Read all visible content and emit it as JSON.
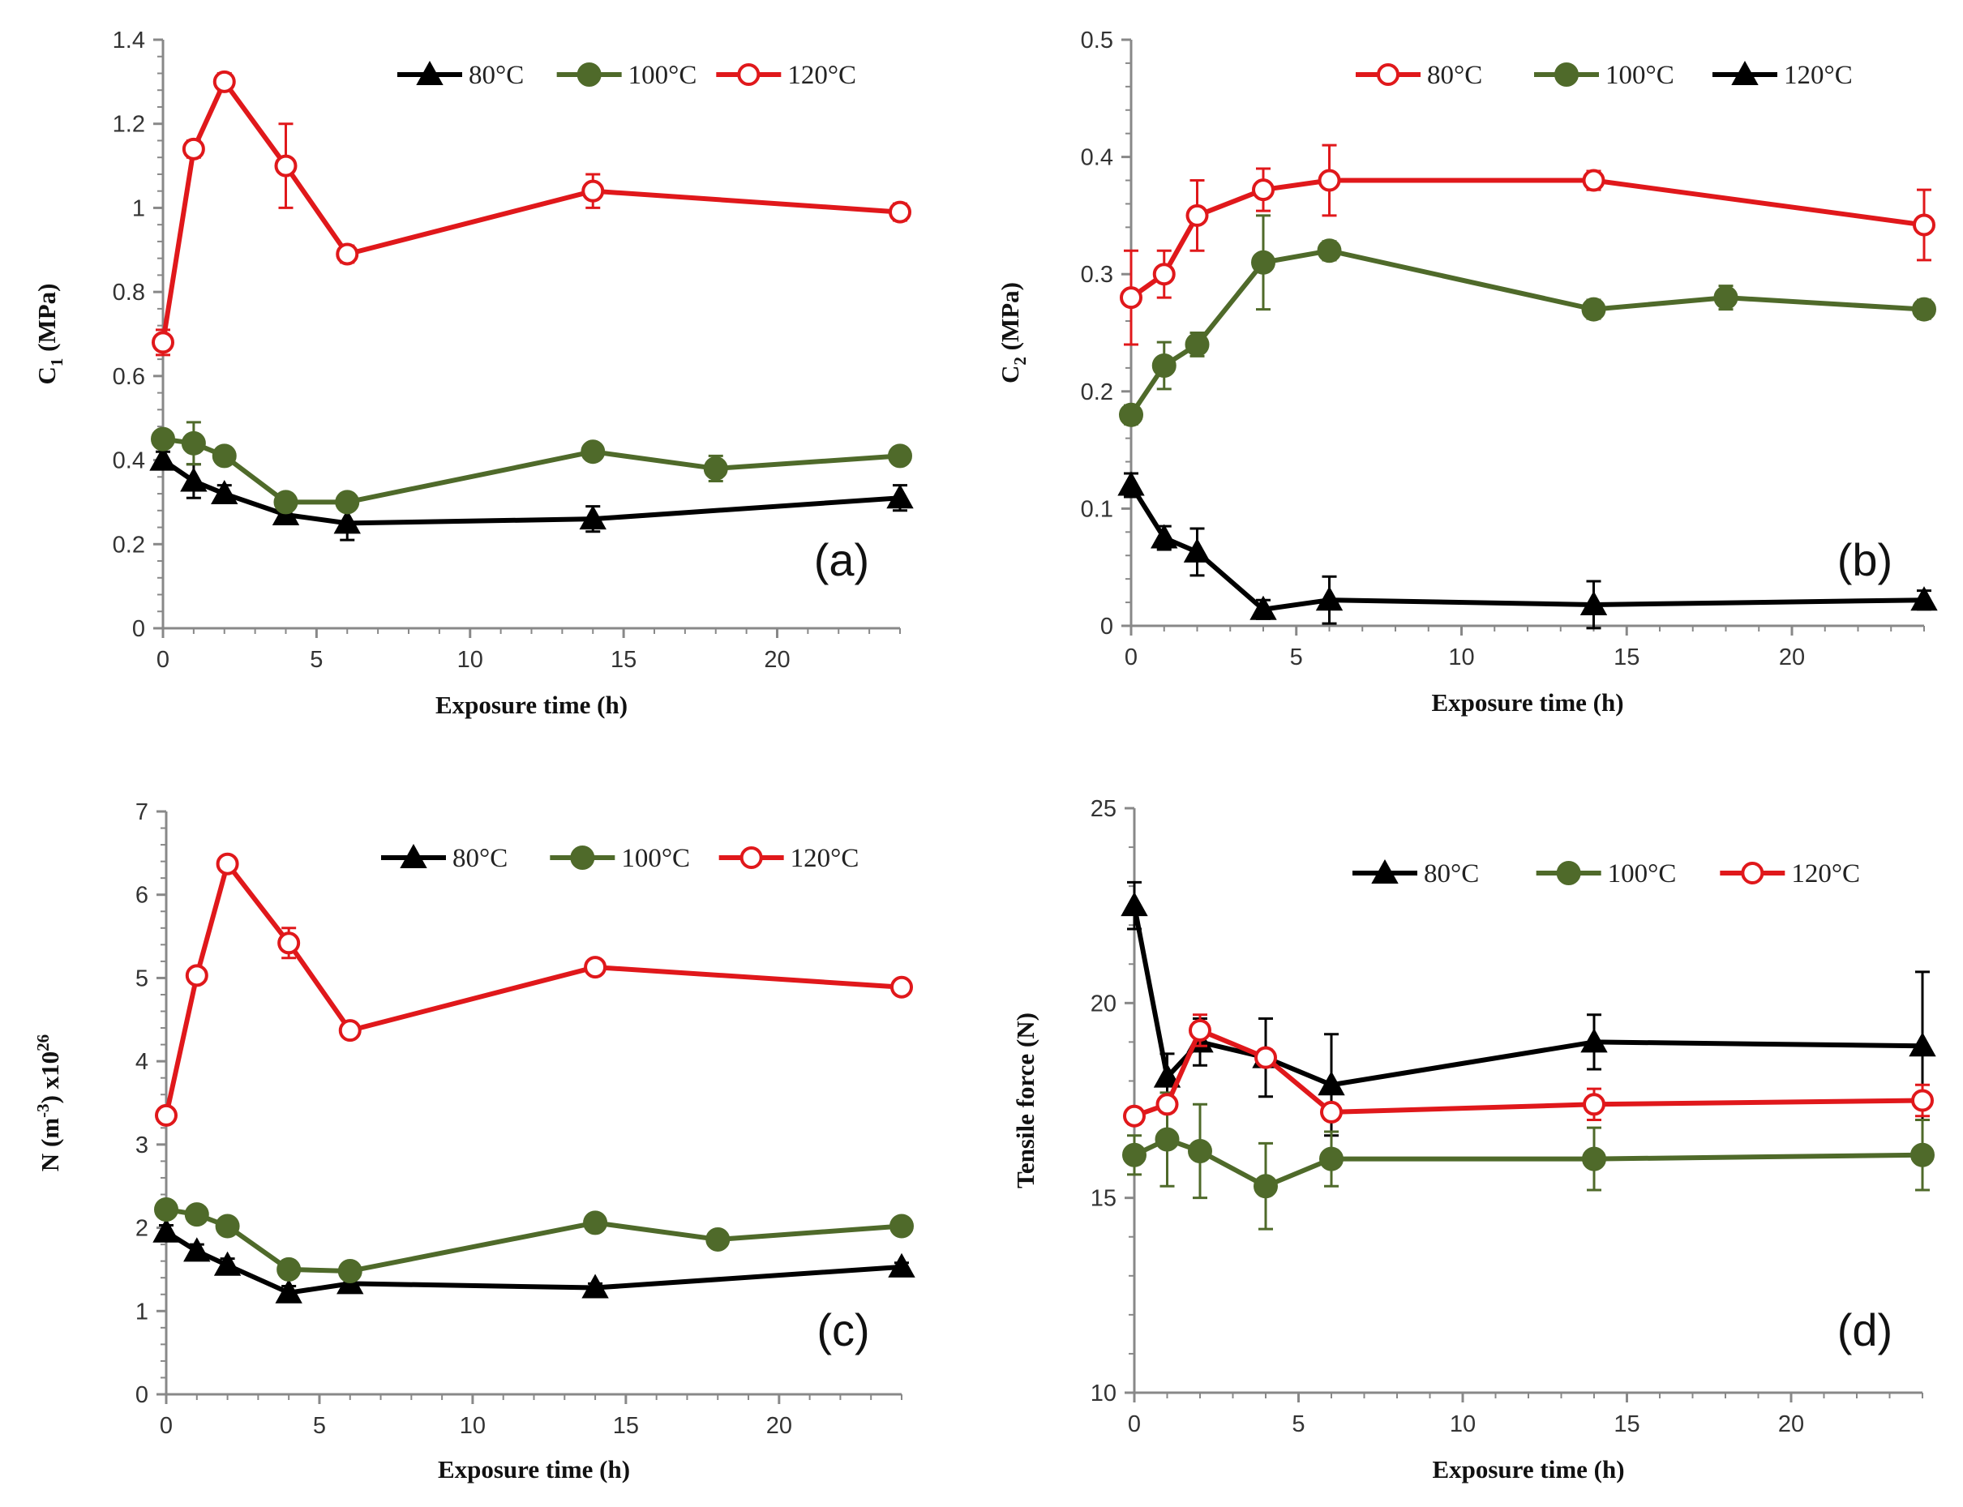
{
  "figure": {
    "colors": {
      "black": "#000000",
      "green": "#4f6a2a",
      "red": "#e0181b",
      "axis": "#888888"
    }
  },
  "chart_data": [
    {
      "type": "line",
      "panel_tag": "(a)",
      "xlabel": "Exposure  time  (h)",
      "ylabel": {
        "main": "C",
        "sub": "1",
        "rest": " (MPa)"
      },
      "xlim": [
        0,
        24
      ],
      "ylim": [
        0,
        1.4
      ],
      "xticks": [
        0,
        5,
        10,
        15,
        20
      ],
      "yticks": [
        0,
        0.2,
        0.4,
        0.6,
        0.8,
        1,
        1.2,
        1.4
      ],
      "legend": [
        {
          "label": "80°C",
          "series": 0
        },
        {
          "label": "100°C",
          "series": 1
        },
        {
          "label": "120°C",
          "series": 2
        }
      ],
      "legend_position": "top-right",
      "series": [
        {
          "name": "80°C",
          "color": "black",
          "marker": "triangle",
          "x": [
            0,
            1,
            2,
            4,
            6,
            14,
            24
          ],
          "y": [
            0.4,
            0.35,
            0.32,
            0.27,
            0.25,
            0.26,
            0.31
          ],
          "err": [
            0.02,
            0.04,
            0.02,
            0.02,
            0.04,
            0.03,
            0.03
          ]
        },
        {
          "name": "100°C",
          "color": "green",
          "marker": "circle",
          "x": [
            0,
            1,
            2,
            4,
            6,
            14,
            18,
            24
          ],
          "y": [
            0.45,
            0.44,
            0.41,
            0.3,
            0.3,
            0.42,
            0.38,
            0.41
          ],
          "err": [
            0.02,
            0.05,
            0.02,
            0.02,
            0.02,
            0.02,
            0.03,
            0.02
          ]
        },
        {
          "name": "120°C",
          "color": "red",
          "marker": "open-circle",
          "x": [
            0,
            1,
            2,
            4,
            6,
            14,
            24
          ],
          "y": [
            0.68,
            1.14,
            1.3,
            1.1,
            0.89,
            1.04,
            0.99
          ],
          "err": [
            0.03,
            0.02,
            0.02,
            0.1,
            0.02,
            0.04,
            0.02
          ]
        }
      ]
    },
    {
      "type": "line",
      "panel_tag": "(b)",
      "xlabel": "Exposure  time  (h)",
      "ylabel": {
        "main": "C",
        "sub": "2",
        "rest": " (MPa)"
      },
      "xlim": [
        0,
        24
      ],
      "ylim": [
        0,
        0.5
      ],
      "xticks": [
        0,
        5,
        10,
        15,
        20
      ],
      "yticks": [
        0,
        0.1,
        0.2,
        0.3,
        0.4,
        0.5
      ],
      "legend": [
        {
          "label": "80°C",
          "series": 2
        },
        {
          "label": "100°C",
          "series": 1
        },
        {
          "label": "120°C",
          "series": 0
        }
      ],
      "legend_position": "top-right",
      "series": [
        {
          "name": "120°C",
          "color": "black",
          "marker": "triangle",
          "x": [
            0,
            1,
            2,
            4,
            6,
            14,
            24
          ],
          "y": [
            0.12,
            0.075,
            0.063,
            0.014,
            0.022,
            0.018,
            0.022
          ],
          "err": [
            0.01,
            0.01,
            0.02,
            0.008,
            0.02,
            0.02,
            0.008
          ]
        },
        {
          "name": "100°C",
          "color": "green",
          "marker": "circle",
          "x": [
            0,
            1,
            2,
            4,
            6,
            14,
            18,
            24
          ],
          "y": [
            0.18,
            0.222,
            0.24,
            0.31,
            0.32,
            0.27,
            0.28,
            0.27
          ],
          "err": [
            0.008,
            0.02,
            0.01,
            0.04,
            0.008,
            0.008,
            0.01,
            0.008
          ]
        },
        {
          "name": "80°C",
          "color": "red",
          "marker": "open-circle",
          "x": [
            0,
            1,
            2,
            4,
            6,
            14,
            24
          ],
          "y": [
            0.28,
            0.3,
            0.35,
            0.372,
            0.38,
            0.38,
            0.342
          ],
          "err": [
            0.04,
            0.02,
            0.03,
            0.018,
            0.03,
            0.008,
            0.03
          ]
        }
      ]
    },
    {
      "type": "line",
      "panel_tag": "(c)",
      "xlabel": "Exposure  time  (h)",
      "ylabel": {
        "pre": "N (m",
        "sup": "-3",
        "mid": ") x10",
        "sup2": "26"
      },
      "xlim": [
        0,
        24
      ],
      "ylim": [
        0,
        7
      ],
      "xticks": [
        0,
        5,
        10,
        15,
        20
      ],
      "yticks": [
        0,
        1,
        2,
        3,
        4,
        5,
        6,
        7
      ],
      "legend": [
        {
          "label": "80°C",
          "series": 0
        },
        {
          "label": "100°C",
          "series": 1
        },
        {
          "label": "120°C",
          "series": 2
        }
      ],
      "legend_position": "top-right",
      "series": [
        {
          "name": "80°C",
          "color": "black",
          "marker": "triangle",
          "x": [
            0,
            1,
            2,
            4,
            6,
            14,
            24
          ],
          "y": [
            1.95,
            1.72,
            1.55,
            1.22,
            1.33,
            1.28,
            1.53
          ],
          "err": [
            0.08,
            0.08,
            0.08,
            0.08,
            0.08,
            0.05,
            0.05
          ]
        },
        {
          "name": "100°C",
          "color": "green",
          "marker": "circle",
          "x": [
            0,
            1,
            2,
            4,
            6,
            14,
            18,
            24
          ],
          "y": [
            2.22,
            2.16,
            2.02,
            1.5,
            1.48,
            2.06,
            1.86,
            2.02
          ],
          "err": [
            0.05,
            0.05,
            0.05,
            0.05,
            0.05,
            0.05,
            0.05,
            0.05
          ]
        },
        {
          "name": "120°C",
          "color": "red",
          "marker": "open-circle",
          "x": [
            0,
            1,
            2,
            4,
            6,
            14,
            24
          ],
          "y": [
            3.35,
            5.03,
            6.37,
            5.42,
            4.37,
            5.13,
            4.89
          ],
          "err": [
            0.05,
            0.05,
            0.05,
            0.18,
            0.05,
            0.05,
            0.05
          ]
        }
      ]
    },
    {
      "type": "line",
      "panel_tag": "(d)",
      "xlabel": "Exposure  time  (h)",
      "ylabel": {
        "main": "Tensile force  (N)"
      },
      "xlim": [
        0,
        24
      ],
      "ylim": [
        10,
        25
      ],
      "xticks": [
        0,
        5,
        10,
        15,
        20
      ],
      "yticks": [
        10,
        15,
        20,
        25
      ],
      "legend": [
        {
          "label": "80°C",
          "series": 0
        },
        {
          "label": "100°C",
          "series": 1
        },
        {
          "label": "120°C",
          "series": 2
        }
      ],
      "legend_position": "top-right",
      "series": [
        {
          "name": "80°C",
          "color": "black",
          "marker": "triangle",
          "x": [
            0,
            1,
            2,
            4,
            6,
            14,
            24
          ],
          "y": [
            22.5,
            18.1,
            19.0,
            18.6,
            17.9,
            19.0,
            18.9
          ],
          "err": [
            0.6,
            0.6,
            0.6,
            1.0,
            1.3,
            0.7,
            1.9
          ]
        },
        {
          "name": "100°C",
          "color": "green",
          "marker": "circle",
          "x": [
            0,
            1,
            2,
            4,
            6,
            14,
            24
          ],
          "y": [
            16.1,
            16.5,
            16.2,
            15.3,
            16.0,
            16.0,
            16.1
          ],
          "err": [
            0.5,
            1.2,
            1.2,
            1.1,
            0.7,
            0.8,
            0.9
          ]
        },
        {
          "name": "120°C",
          "color": "red",
          "marker": "open-circle",
          "x": [
            0,
            1,
            2,
            4,
            6,
            14,
            24
          ],
          "y": [
            17.1,
            17.4,
            19.3,
            18.6,
            17.2,
            17.4,
            17.5
          ],
          "err": [
            0.2,
            0.2,
            0.4,
            0.2,
            0.2,
            0.4,
            0.4
          ]
        }
      ]
    }
  ]
}
